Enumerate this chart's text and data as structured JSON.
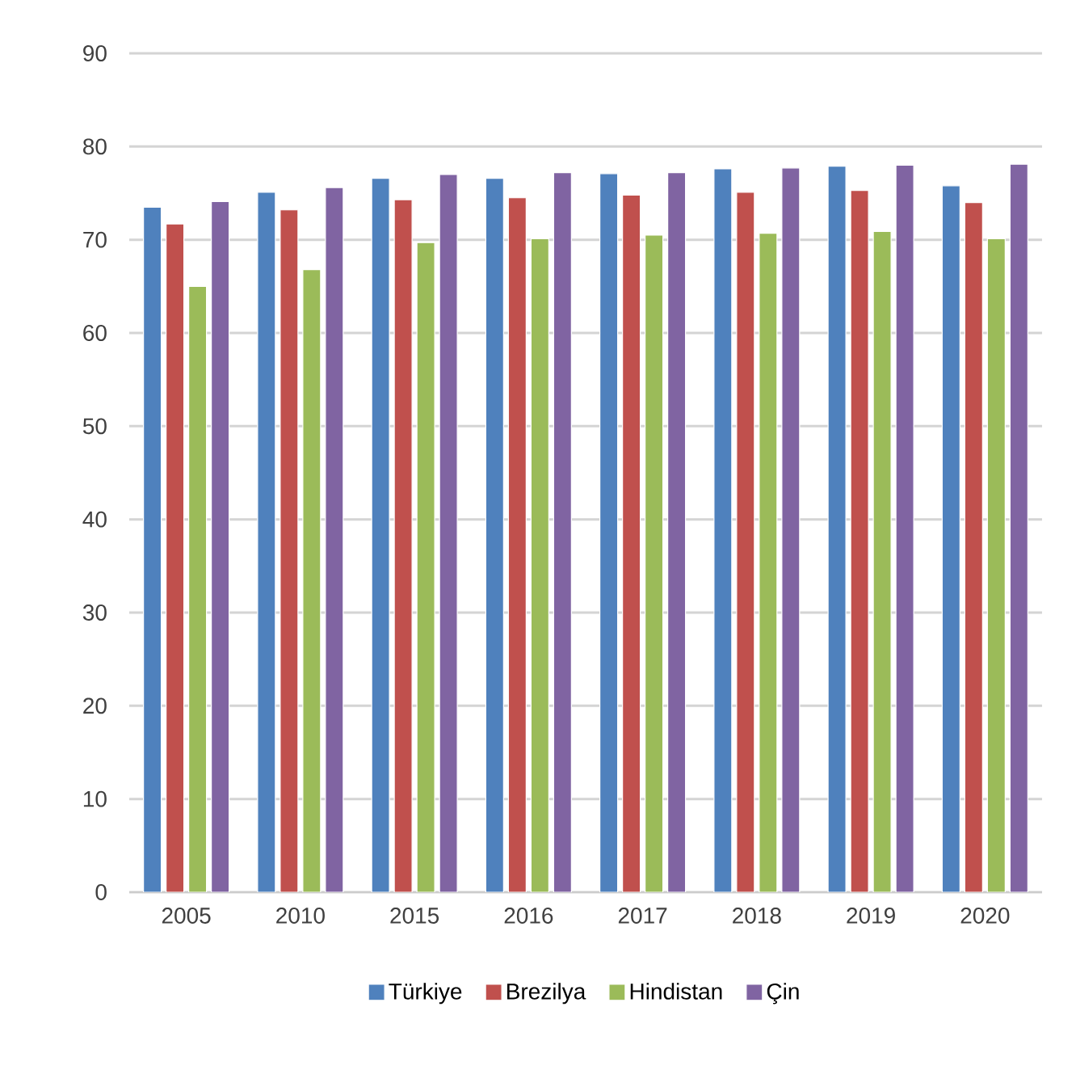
{
  "chart_data": {
    "type": "bar",
    "categories": [
      "2005",
      "2010",
      "2015",
      "2016",
      "2017",
      "2018",
      "2019",
      "2020"
    ],
    "series": [
      {
        "name": "Türkiye",
        "color": "#4f81bd",
        "values": [
          73.5,
          75.1,
          76.6,
          76.6,
          77.1,
          77.6,
          77.9,
          75.8
        ]
      },
      {
        "name": "Brezilya",
        "color": "#c0504d",
        "values": [
          71.7,
          73.2,
          74.3,
          74.5,
          74.8,
          75.1,
          75.3,
          74.0
        ]
      },
      {
        "name": "Hindistan",
        "color": "#9bbb59",
        "values": [
          65.0,
          66.8,
          69.7,
          70.1,
          70.5,
          70.7,
          70.9,
          70.1
        ]
      },
      {
        "name": "Çin",
        "color": "#8064a2",
        "values": [
          74.1,
          75.6,
          77.0,
          77.2,
          77.2,
          77.7,
          78.0,
          78.1
        ]
      }
    ],
    "ylim": [
      0,
      90
    ],
    "yticks": [
      0,
      10,
      20,
      30,
      40,
      50,
      60,
      70,
      80,
      90
    ],
    "grid": "y",
    "legend": "bottom"
  }
}
